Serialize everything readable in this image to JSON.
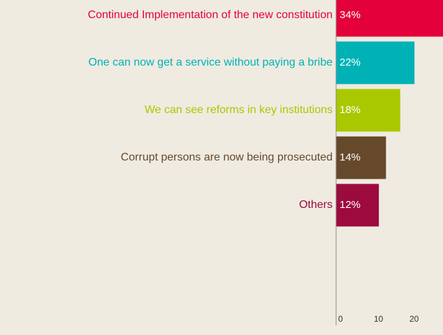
{
  "chart_data": {
    "type": "barh",
    "categories": [
      "Continued Implementation of the new constitution",
      "One can now get a service without paying a bribe",
      "We can see reforms in key institutions",
      "Corrupt persons are now being prosecuted",
      "Others"
    ],
    "values": [
      34,
      22,
      18,
      14,
      12
    ],
    "value_labels": [
      "34%",
      "22%",
      "18%",
      "14%",
      "12%"
    ],
    "colors": [
      "#e4003b",
      "#00b2b5",
      "#aac800",
      "#66492b",
      "#9c0a3e"
    ],
    "xlim": [
      0,
      30
    ],
    "xticks": [
      0,
      10,
      20
    ]
  }
}
